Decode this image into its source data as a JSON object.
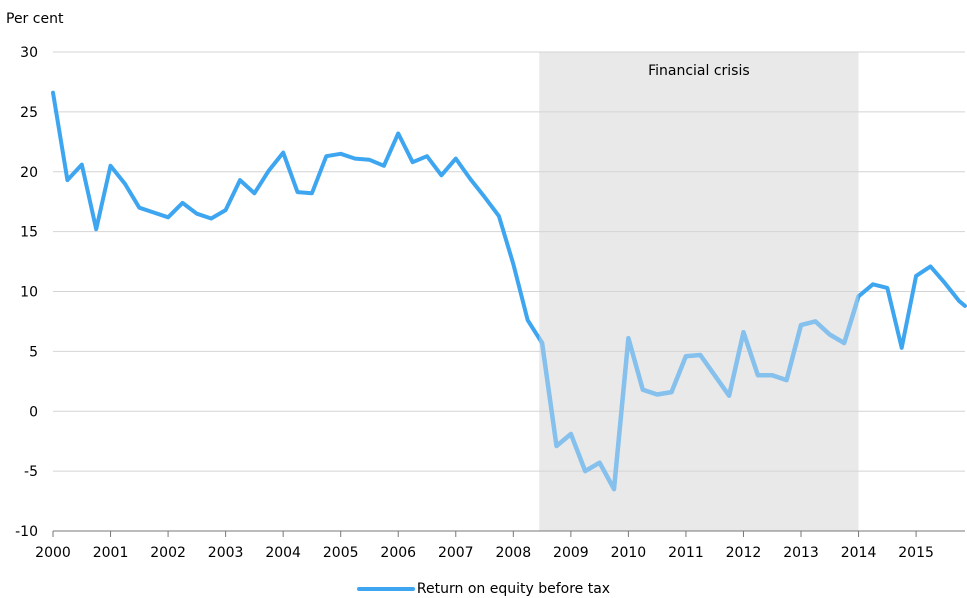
{
  "chart_data": {
    "type": "line",
    "ylabel": "Per cent",
    "ylim": [
      -10,
      30
    ],
    "yticks": [
      -10,
      -5,
      0,
      5,
      10,
      15,
      20,
      25,
      30
    ],
    "xlim": [
      2000,
      2015.85
    ],
    "xticks": [
      "2000",
      "2001",
      "2002",
      "2003",
      "2004",
      "2005",
      "2006",
      "2007",
      "2008",
      "2009",
      "2010",
      "2011",
      "2012",
      "2013",
      "2014",
      "2015"
    ],
    "grid": true,
    "legend_position": "bottom",
    "shaded_region": {
      "label": "Financial crisis",
      "x_start": 2008.45,
      "x_end": 2014.0,
      "color": "#e9e9e9"
    },
    "series": [
      {
        "name": "Return on equity before tax",
        "color": "#3ea6f0",
        "crisis_color": "#86c1ee",
        "x": [
          2000.0,
          2000.25,
          2000.5,
          2000.75,
          2001.0,
          2001.25,
          2001.5,
          2001.75,
          2002.0,
          2002.25,
          2002.5,
          2002.75,
          2003.0,
          2003.25,
          2003.5,
          2003.75,
          2004.0,
          2004.25,
          2004.5,
          2004.75,
          2005.0,
          2005.25,
          2005.5,
          2005.75,
          2006.0,
          2006.25,
          2006.5,
          2006.75,
          2007.0,
          2007.25,
          2007.5,
          2007.75,
          2008.0,
          2008.25,
          2008.5,
          2008.75,
          2009.0,
          2009.25,
          2009.5,
          2009.75,
          2010.0,
          2010.25,
          2010.5,
          2010.75,
          2011.0,
          2011.25,
          2011.5,
          2011.75,
          2012.0,
          2012.25,
          2012.5,
          2012.75,
          2013.0,
          2013.25,
          2013.5,
          2013.75,
          2014.0,
          2014.25,
          2014.5,
          2014.75,
          2015.0,
          2015.25,
          2015.5,
          2015.75,
          2015.85
        ],
        "values": [
          26.6,
          19.3,
          20.6,
          15.2,
          20.5,
          19.0,
          17.0,
          16.6,
          16.2,
          17.4,
          16.5,
          16.1,
          16.8,
          19.3,
          18.2,
          20.1,
          21.6,
          18.3,
          18.2,
          21.3,
          21.5,
          21.1,
          21.0,
          20.5,
          23.2,
          20.8,
          21.3,
          19.7,
          21.1,
          19.4,
          17.9,
          16.3,
          12.3,
          7.6,
          5.7,
          -2.9,
          -1.9,
          -5.0,
          -4.3,
          -6.5,
          6.1,
          1.8,
          1.4,
          1.6,
          4.6,
          4.7,
          3.0,
          1.3,
          6.6,
          3.0,
          3.0,
          2.6,
          7.2,
          7.5,
          6.4,
          5.7,
          9.6,
          10.6,
          10.3,
          5.3,
          11.3,
          12.1,
          10.7,
          9.2,
          8.8
        ]
      }
    ]
  }
}
